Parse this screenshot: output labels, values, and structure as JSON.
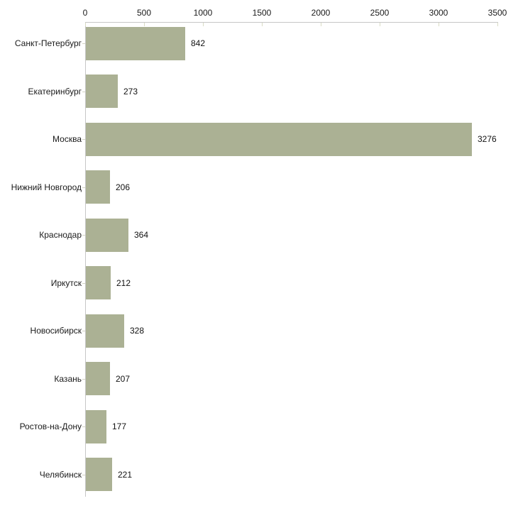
{
  "chart_data": {
    "type": "bar",
    "orientation": "horizontal",
    "title": "",
    "xlabel": "",
    "ylabel": "",
    "categories": [
      "Санкт-Петербург",
      "Екатеринбург",
      "Москва",
      "Нижний Новгород",
      "Краснодар",
      "Иркутск",
      "Новосибирск",
      "Казань",
      "Ростов-на-Дону",
      "Челябинск"
    ],
    "values": [
      842,
      273,
      3276,
      206,
      364,
      212,
      328,
      207,
      177,
      221
    ],
    "value_labels": [
      "842",
      "273",
      "3276",
      "206",
      "364",
      "212",
      "328",
      "207",
      "177",
      "221"
    ],
    "xlim": [
      0,
      3500
    ],
    "xticks": [
      0,
      500,
      1000,
      1500,
      2000,
      2500,
      3000,
      3500
    ],
    "xtick_labels": [
      "0",
      "500",
      "1000",
      "1500",
      "2000",
      "2500",
      "3000",
      "3500"
    ],
    "axis_position": "top",
    "grid": false,
    "legend": false,
    "bar_color": "#abb194",
    "axis_line_color": "#c6c6c6",
    "tick_mark_color": "#d9dbc4",
    "text_color": "#1a1a1a",
    "background_color": "#ffffff"
  }
}
